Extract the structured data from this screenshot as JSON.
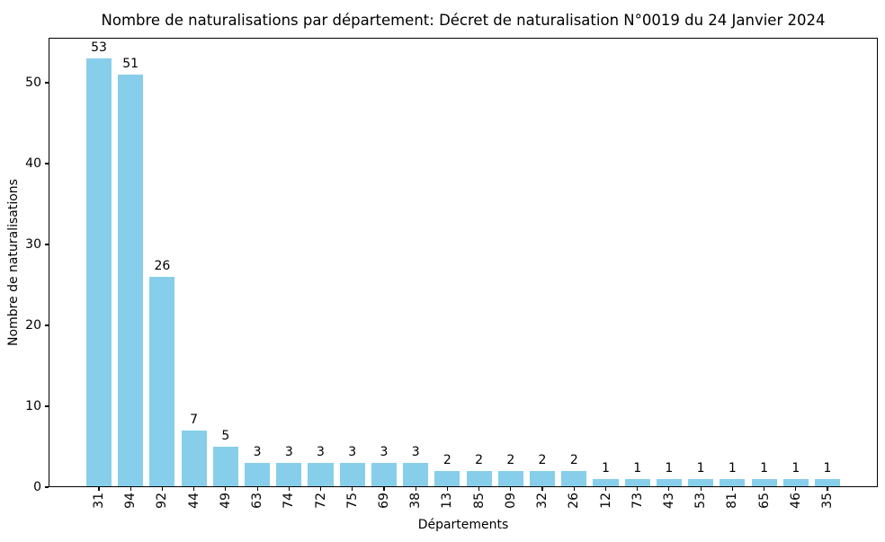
{
  "figure": {
    "background_color": "#ffffff",
    "text_color": "#000000"
  },
  "chart_data": {
    "type": "bar",
    "title": "Nombre de naturalisations par département: Décret de naturalisation N°0019 du 24 Janvier 2024",
    "xlabel": "Départements",
    "ylabel": "Nombre de naturalisations",
    "categories": [
      "31",
      "94",
      "92",
      "44",
      "49",
      "63",
      "74",
      "72",
      "75",
      "69",
      "38",
      "13",
      "85",
      "09",
      "32",
      "26",
      "12",
      "73",
      "43",
      "53",
      "81",
      "65",
      "46",
      "35"
    ],
    "values": [
      53,
      51,
      26,
      7,
      5,
      3,
      3,
      3,
      3,
      3,
      3,
      2,
      2,
      2,
      2,
      2,
      1,
      1,
      1,
      1,
      1,
      1,
      1,
      1
    ],
    "value_labels_shown": true,
    "yticks": [
      0,
      10,
      20,
      30,
      40,
      50
    ],
    "ylim": [
      0,
      55.56
    ],
    "xlim": [
      -1.59,
      24.59
    ],
    "bar_color": "#87CEEB",
    "bar_width_fraction": 0.8,
    "grid": false,
    "legend": "none",
    "xtick_rotation_deg": 90
  }
}
